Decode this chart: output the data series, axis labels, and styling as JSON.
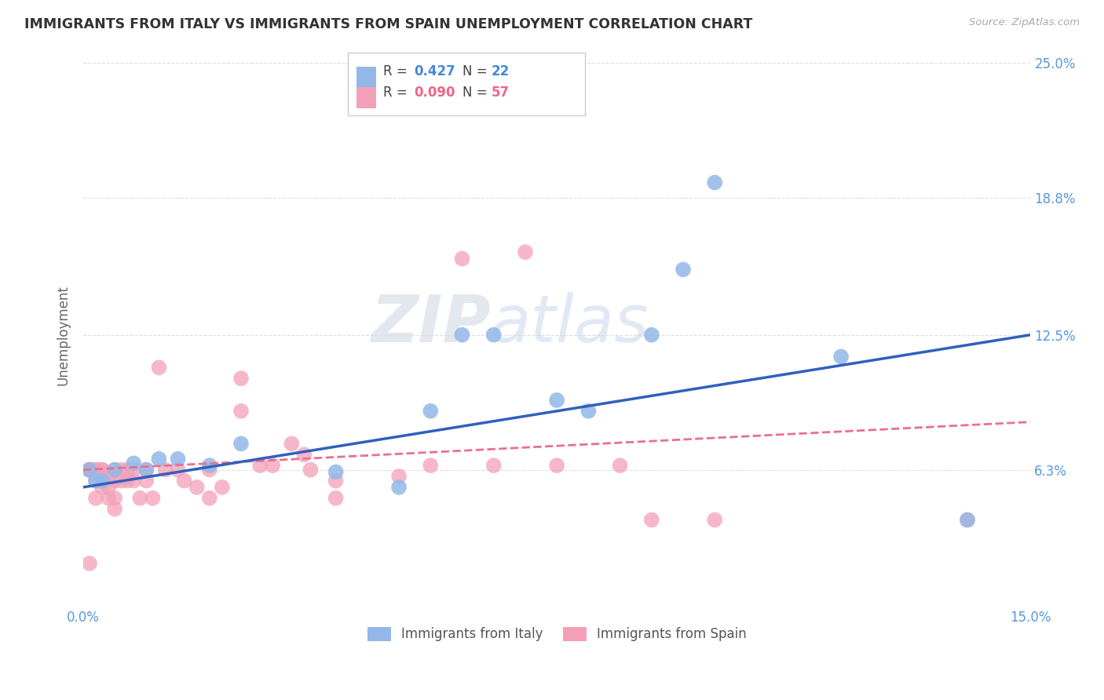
{
  "title": "IMMIGRANTS FROM ITALY VS IMMIGRANTS FROM SPAIN UNEMPLOYMENT CORRELATION CHART",
  "source": "Source: ZipAtlas.com",
  "ylabel": "Unemployment",
  "xlim": [
    0.0,
    0.15
  ],
  "ylim": [
    0.0,
    0.25
  ],
  "yticks": [
    0.063,
    0.125,
    0.188,
    0.25
  ],
  "ytick_labels": [
    "6.3%",
    "12.5%",
    "18.8%",
    "25.0%"
  ],
  "xticks": [
    0.0,
    0.03,
    0.06,
    0.09,
    0.12,
    0.15
  ],
  "xtick_labels": [
    "0.0%",
    "",
    "",
    "",
    "",
    "15.0%"
  ],
  "italy_R": 0.427,
  "italy_N": 22,
  "spain_R": 0.09,
  "spain_N": 57,
  "italy_color": "#93b8e8",
  "spain_color": "#f4a0b8",
  "trend_italy_color": "#3060c0",
  "trend_spain_color": "#e87090",
  "background_color": "#ffffff",
  "grid_color": "#dddddd",
  "title_color": "#333333",
  "axis_label_color": "#666666",
  "tick_label_color": "#5599dd",
  "legend_R_color_italy": "#4488dd",
  "legend_R_color_spain": "#ee6688",
  "italy_x": [
    0.001,
    0.002,
    0.003,
    0.005,
    0.008,
    0.01,
    0.012,
    0.015,
    0.02,
    0.025,
    0.04,
    0.05,
    0.055,
    0.06,
    0.065,
    0.075,
    0.08,
    0.09,
    0.095,
    0.1,
    0.12,
    0.14
  ],
  "italy_y": [
    0.063,
    0.058,
    0.058,
    0.063,
    0.066,
    0.063,
    0.068,
    0.068,
    0.065,
    0.075,
    0.062,
    0.055,
    0.09,
    0.125,
    0.125,
    0.095,
    0.09,
    0.125,
    0.155,
    0.195,
    0.115,
    0.04
  ],
  "spain_x": [
    0.001,
    0.001,
    0.001,
    0.001,
    0.001,
    0.002,
    0.002,
    0.002,
    0.002,
    0.003,
    0.003,
    0.003,
    0.003,
    0.004,
    0.004,
    0.004,
    0.005,
    0.005,
    0.005,
    0.005,
    0.006,
    0.006,
    0.007,
    0.007,
    0.008,
    0.008,
    0.009,
    0.01,
    0.01,
    0.011,
    0.012,
    0.013,
    0.015,
    0.016,
    0.018,
    0.02,
    0.02,
    0.022,
    0.025,
    0.025,
    0.028,
    0.03,
    0.033,
    0.035,
    0.036,
    0.04,
    0.04,
    0.05,
    0.055,
    0.06,
    0.065,
    0.07,
    0.075,
    0.085,
    0.09,
    0.1,
    0.14
  ],
  "spain_y": [
    0.063,
    0.063,
    0.063,
    0.063,
    0.02,
    0.063,
    0.063,
    0.058,
    0.05,
    0.063,
    0.055,
    0.063,
    0.058,
    0.06,
    0.055,
    0.05,
    0.063,
    0.058,
    0.05,
    0.045,
    0.063,
    0.058,
    0.063,
    0.058,
    0.063,
    0.058,
    0.05,
    0.063,
    0.058,
    0.05,
    0.11,
    0.063,
    0.063,
    0.058,
    0.055,
    0.063,
    0.05,
    0.055,
    0.105,
    0.09,
    0.065,
    0.065,
    0.075,
    0.07,
    0.063,
    0.058,
    0.05,
    0.06,
    0.065,
    0.16,
    0.065,
    0.163,
    0.065,
    0.065,
    0.04,
    0.04,
    0.04
  ],
  "italy_trend_x0": 0.0,
  "italy_trend_y0": 0.055,
  "italy_trend_x1": 0.15,
  "italy_trend_y1": 0.125,
  "spain_trend_x0": 0.0,
  "spain_trend_y0": 0.063,
  "spain_trend_x1": 0.15,
  "spain_trend_y1": 0.085
}
